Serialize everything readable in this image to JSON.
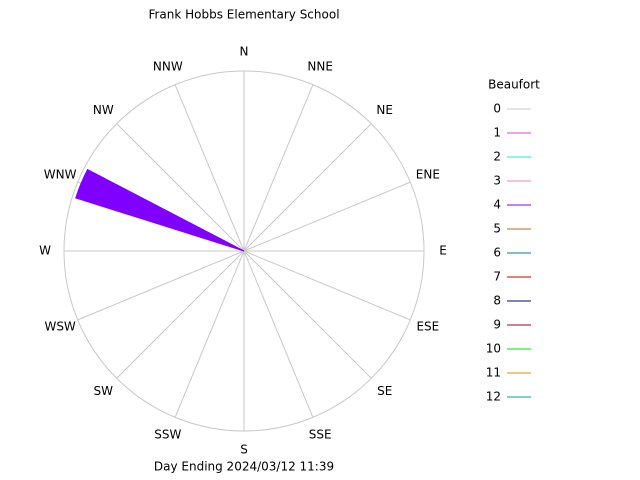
{
  "chart_data": {
    "type": "windrose",
    "title": "Frank Hobbs Elementary School",
    "subtitle": "Day Ending 2024/03/12 11:39",
    "legend_title": "Beaufort",
    "categories": [
      "N",
      "NNE",
      "NE",
      "ENE",
      "E",
      "ESE",
      "SE",
      "SSE",
      "S",
      "SSW",
      "SW",
      "WSW",
      "W",
      "WNW",
      "NW",
      "NNW"
    ],
    "rlim": [
      0,
      100
    ],
    "grid": true,
    "series": [
      {
        "name": "0",
        "color": "#c8c8c8",
        "values": [
          0,
          0,
          0,
          0,
          0,
          0,
          0,
          0,
          0,
          0,
          0,
          0,
          0,
          0,
          0,
          0
        ]
      },
      {
        "name": "1",
        "color": "#e040e0",
        "values": [
          0,
          0,
          0,
          0,
          0,
          0,
          0,
          0,
          0,
          0,
          0,
          0,
          0,
          0,
          0,
          0
        ]
      },
      {
        "name": "2",
        "color": "#20e0e0",
        "values": [
          0,
          0,
          0,
          0,
          0,
          0,
          0,
          0,
          0,
          0,
          0,
          0,
          0,
          0,
          0,
          0
        ]
      },
      {
        "name": "3",
        "color": "#f080c0",
        "values": [
          0,
          0,
          0,
          0,
          0,
          0,
          0,
          0,
          0,
          0,
          0,
          0,
          0,
          0,
          0,
          0
        ]
      },
      {
        "name": "4",
        "color": "#8000ff",
        "values": [
          0,
          0,
          0,
          0,
          0,
          0,
          0,
          0,
          0,
          0,
          0,
          0,
          0,
          98,
          0,
          0
        ]
      },
      {
        "name": "5",
        "color": "#b06820",
        "values": [
          0,
          0,
          0,
          0,
          0,
          0,
          0,
          0,
          0,
          0,
          0,
          0,
          0,
          0,
          0,
          0
        ]
      },
      {
        "name": "6",
        "color": "#008080",
        "values": [
          0,
          0,
          0,
          0,
          0,
          0,
          0,
          0,
          0,
          0,
          0,
          0,
          0,
          0,
          0,
          0
        ]
      },
      {
        "name": "7",
        "color": "#c00000",
        "values": [
          0,
          0,
          0,
          0,
          0,
          0,
          0,
          0,
          0,
          0,
          0,
          0,
          0,
          0,
          0,
          0
        ]
      },
      {
        "name": "8",
        "color": "#000080",
        "values": [
          0,
          0,
          0,
          0,
          0,
          0,
          0,
          0,
          0,
          0,
          0,
          0,
          0,
          0,
          0,
          0
        ]
      },
      {
        "name": "9",
        "color": "#a00020",
        "values": [
          0,
          0,
          0,
          0,
          0,
          0,
          0,
          0,
          0,
          0,
          0,
          0,
          0,
          0,
          0,
          0
        ]
      },
      {
        "name": "10",
        "color": "#00e000",
        "values": [
          0,
          0,
          0,
          0,
          0,
          0,
          0,
          0,
          0,
          0,
          0,
          0,
          0,
          0,
          0,
          0
        ]
      },
      {
        "name": "11",
        "color": "#e09000",
        "values": [
          0,
          0,
          0,
          0,
          0,
          0,
          0,
          0,
          0,
          0,
          0,
          0,
          0,
          0,
          0,
          0
        ]
      },
      {
        "name": "12",
        "color": "#00a0a0",
        "values": [
          0,
          0,
          0,
          0,
          0,
          0,
          0,
          0,
          0,
          0,
          0,
          0,
          0,
          0,
          0,
          0
        ]
      }
    ]
  }
}
